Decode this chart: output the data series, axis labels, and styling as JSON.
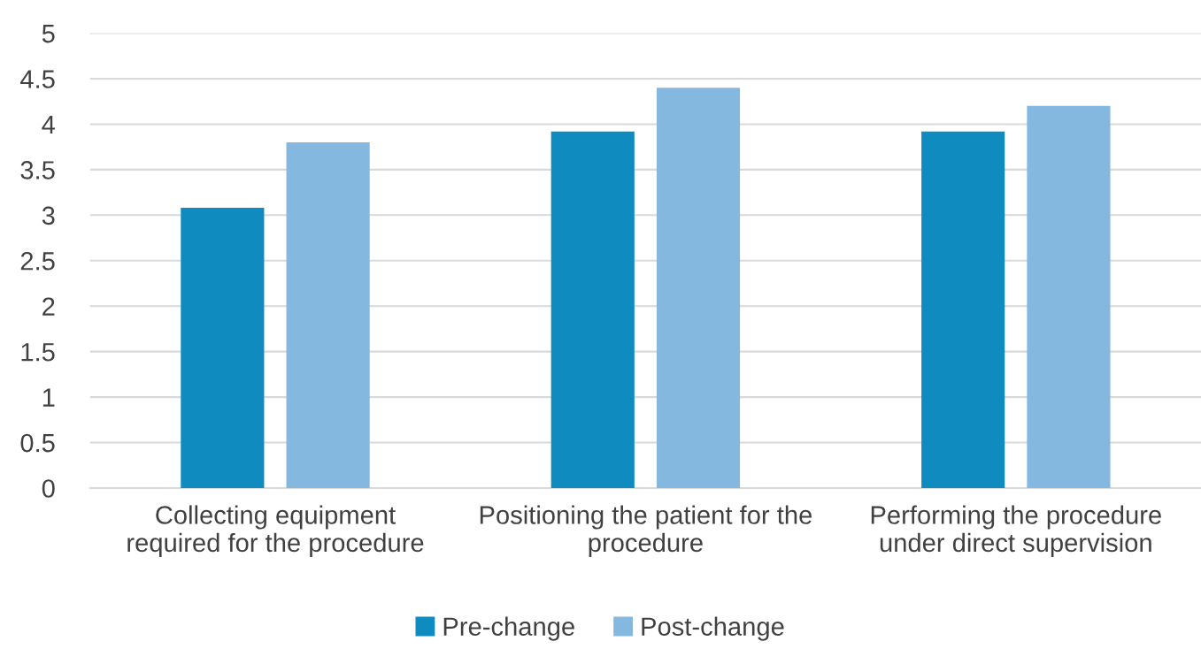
{
  "chart_data": {
    "type": "bar",
    "categories": [
      "Collecting equipment\nrequired for the procedure",
      "Positioning the patient for the\nprocedure",
      "Performing the procedure\nunder direct supervision"
    ],
    "series": [
      {
        "name": "Pre-change",
        "color": "#0f8bbf",
        "values": [
          3.08,
          3.92,
          3.92
        ]
      },
      {
        "name": "Post-change",
        "color": "#84b8df",
        "values": [
          3.8,
          4.4,
          4.2
        ]
      }
    ],
    "ylim": [
      0,
      5
    ],
    "yticks": [
      0,
      0.5,
      1,
      1.5,
      2,
      2.5,
      3,
      3.5,
      4,
      4.5,
      5
    ],
    "grid": "y",
    "legend": "bottom"
  }
}
